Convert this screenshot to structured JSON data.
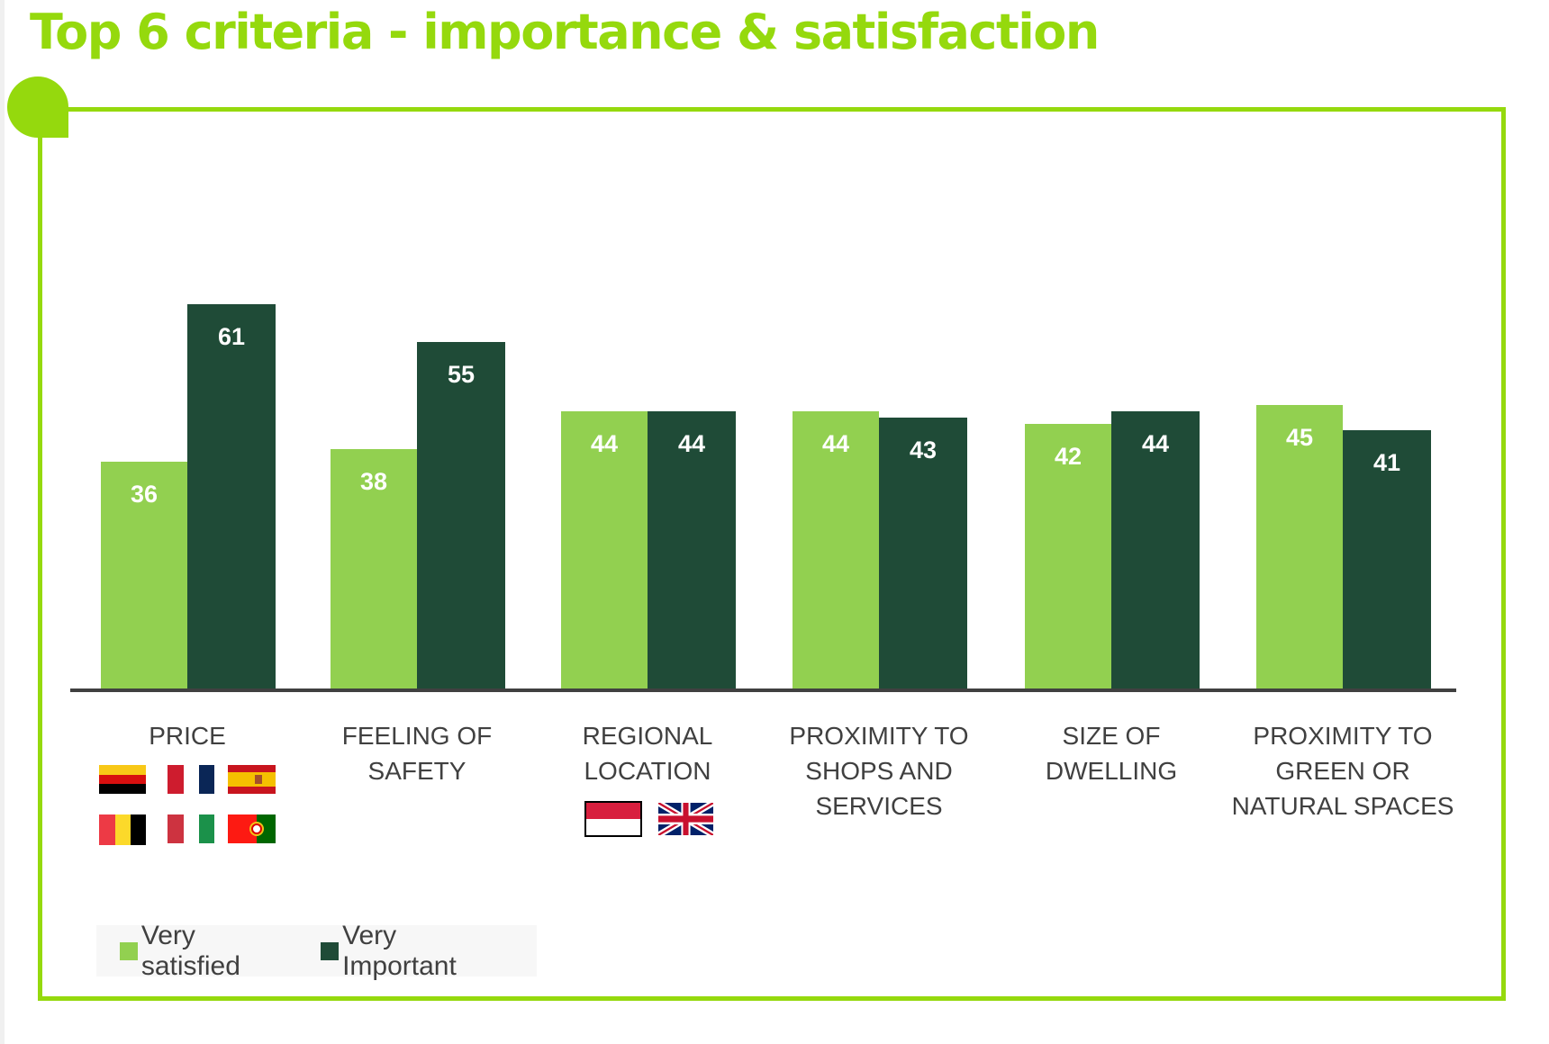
{
  "title": "Top 6 criteria - importance & satisfaction",
  "colors": {
    "accent": "#95d90d",
    "very_satisfied": "#92d050",
    "very_important": "#1f4b37",
    "axis": "#404040",
    "label_text": "#404040",
    "bar_value_text": "#ffffff"
  },
  "chart_data": {
    "type": "bar",
    "title": "Top 6 criteria - importance & satisfaction",
    "xlabel": "",
    "ylabel": "",
    "ylim": [
      0,
      65
    ],
    "grid": false,
    "legend_position": "bottom-left",
    "categories": [
      "PRICE",
      "FEELING OF\nSAFETY",
      "REGIONAL\nLOCATION",
      "PROXIMITY TO\nSHOPS AND\nSERVICES",
      "SIZE OF\nDWELLING",
      "PROXIMITY TO\nGREEN OR\nNATURAL SPACES"
    ],
    "series": [
      {
        "name": "Very satisfied",
        "color": "#92d050",
        "values": [
          36,
          38,
          44,
          44,
          42,
          45
        ]
      },
      {
        "name": "Very Important",
        "color": "#1f4b37",
        "values": [
          61,
          55,
          44,
          43,
          44,
          41
        ]
      }
    ],
    "data_labels": true
  },
  "legend": [
    {
      "label": "Very satisfied"
    },
    {
      "label": "Very Important"
    }
  ],
  "flags": {
    "price": [
      "germany-flag",
      "france-flag",
      "spain-flag",
      "belgium-flag",
      "italy-flag",
      "portugal-flag"
    ],
    "regional_location": [
      "monaco-flag",
      "uk-flag"
    ]
  }
}
